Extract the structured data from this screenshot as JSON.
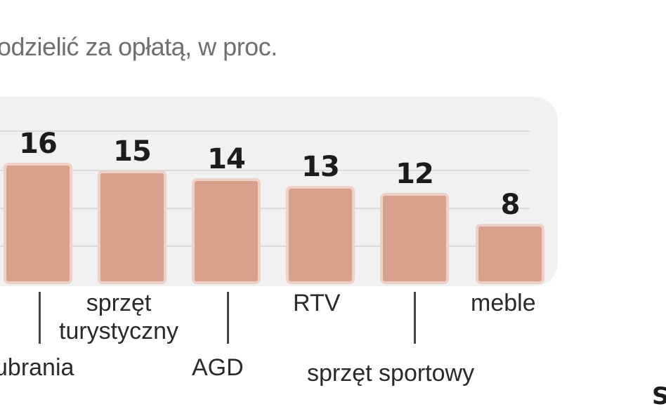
{
  "chart_data": {
    "type": "bar",
    "title": "",
    "subtitle": "odzielić za opłatą, w proc.",
    "xlabel": "",
    "ylabel": "",
    "ylim": [
      0,
      17
    ],
    "grid": true,
    "categories": [
      "ubrania",
      "sprzęt turystyczny",
      "AGD",
      "RTV",
      "sprzęt sportowy",
      "meble"
    ],
    "category_lines": [
      [
        "ubrania"
      ],
      [
        "sprzęt",
        "turystyczny"
      ],
      [
        "AGD"
      ],
      [
        "RTV"
      ],
      [
        "sprzęt sportowy"
      ],
      [
        "meble"
      ]
    ],
    "values": [
      16,
      15,
      14,
      13,
      12,
      8
    ],
    "value_labels": [
      "16",
      "15",
      "14",
      "13",
      "12",
      "8"
    ]
  },
  "source": "S",
  "colors": {
    "bar": "#d9a08b",
    "bar_border": "#efd2c7",
    "panel": "#f1f1f1",
    "grid": "#dcdcdc"
  }
}
